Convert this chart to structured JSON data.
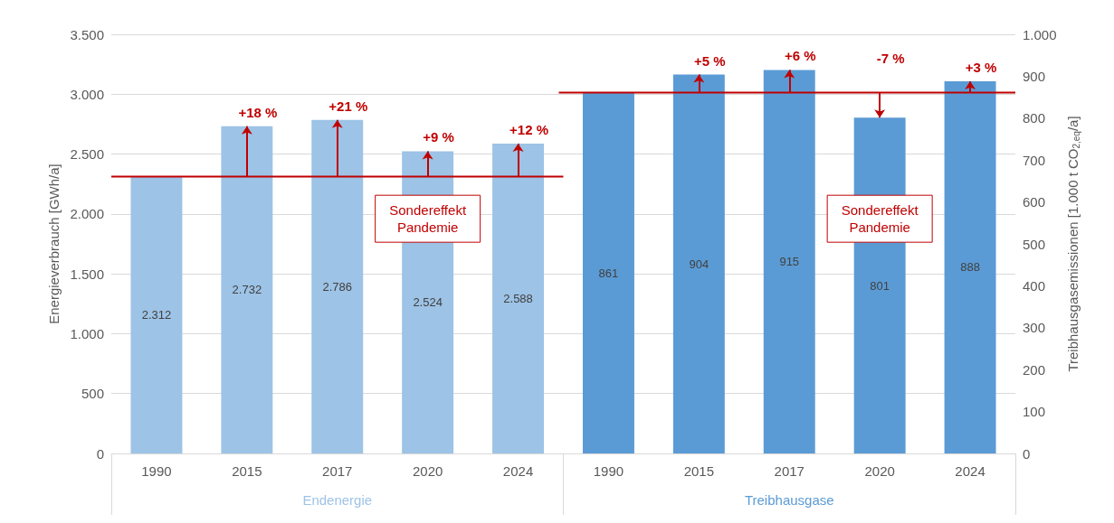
{
  "chart_data": {
    "type": "bar",
    "ylabel": "Energieverbrauch [GWh/a]",
    "y2label": "Treibhausgasemissionen [1.000 t CO$_{2,eq}$/a]",
    "categories": [
      "1990",
      "2015",
      "2017",
      "2020",
      "2024",
      "1990",
      "2015",
      "2017",
      "2020",
      "2024"
    ],
    "series": [
      {
        "name": "Endenergie",
        "color": "#9dc3e6",
        "values": [
          2312,
          2732,
          2786,
          2524,
          2588,
          null,
          null,
          null,
          null,
          null
        ],
        "value_labels": [
          "2.312",
          "2.732",
          "2.786",
          "2.524",
          "2.588",
          null,
          null,
          null,
          null,
          null
        ]
      },
      {
        "name": "Treibhausgase",
        "color": "#5b9bd5",
        "axis": "y2",
        "values": [
          null,
          null,
          null,
          null,
          null,
          861,
          904,
          915,
          801,
          888
        ],
        "value_labels": [
          null,
          null,
          null,
          null,
          null,
          "861",
          "904",
          "915",
          "801",
          "888"
        ]
      }
    ],
    "ylim": [
      0,
      3500
    ],
    "yticks": [
      0,
      500,
      {
        "value": 1000,
        "label": "1.000"
      },
      {
        "value": 1500,
        "label": "1.500"
      },
      {
        "value": 2000,
        "label": "2.000"
      },
      {
        "value": 2500,
        "label": "2.500"
      },
      {
        "value": 3000,
        "label": "3.000"
      },
      {
        "value": 3500,
        "label": "3.500"
      }
    ],
    "y2lim": [
      0,
      1000
    ],
    "y2ticks": [
      0,
      100,
      200,
      300,
      400,
      500,
      600,
      700,
      800,
      900,
      {
        "value": 1000,
        "label": "1.000"
      }
    ],
    "grid": "y",
    "ref_lines": [
      {
        "axis": "y",
        "value": 2312,
        "color": "#c00000"
      },
      {
        "axis": "y2",
        "value": 861,
        "color": "#c00000"
      }
    ],
    "annotations": [
      "+18 %",
      "+21 %",
      "+9 %",
      "+12 %",
      "+5 %",
      "+6 %",
      "-7 %",
      "+3 %",
      "Sondereffekt\nPandemie",
      "Sondereffekt\nPandemie"
    ]
  }
}
